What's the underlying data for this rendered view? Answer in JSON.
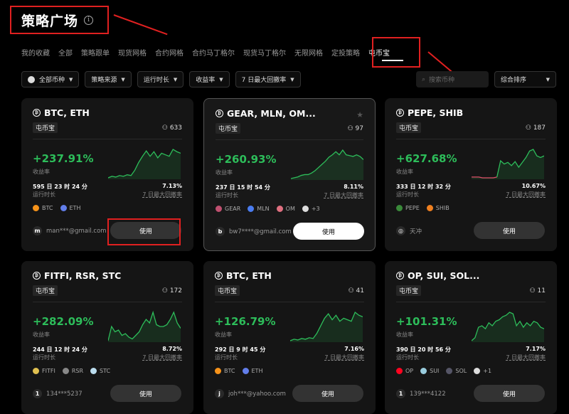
{
  "header": {
    "title": "策略广场",
    "info_icon": "info-circle-icon"
  },
  "tabs": [
    "我的收藏",
    "全部",
    "策略跟单",
    "现货网格",
    "合约网格",
    "合约马丁格尔",
    "现货马丁格尔",
    "无限网格",
    "定投策略",
    "屯币宝"
  ],
  "active_tab": "屯币宝",
  "filters": [
    "全部币种",
    "策略来源",
    "运行时长",
    "收益率",
    "7 日最大回撤率"
  ],
  "search": {
    "placeholder": "搜索币种"
  },
  "sort": {
    "label": "综合排序"
  },
  "colors": {
    "accent_green": "#2dbd5a",
    "loss_red": "#e0506a",
    "highlight_box": "#e02020"
  },
  "labels": {
    "yield": "收益率",
    "runtime": "运行时长",
    "drawdown": "7 日最大回撤率",
    "use": "使用",
    "tag": "屯币宝"
  },
  "cards": [
    {
      "title": "BTC, ETH",
      "followers": "633",
      "pct": "+237.91%",
      "runtime": "595 日 23 时 24 分",
      "drawdown": "7.13%",
      "coins": [
        {
          "n": "BTC",
          "c": "#f7931a"
        },
        {
          "n": "ETH",
          "c": "#627eea"
        }
      ],
      "user": "man***@gmail.com",
      "avatar": "m",
      "button_style": "dark",
      "spark": [
        10,
        12,
        11,
        13,
        12,
        14,
        13,
        20,
        30,
        38,
        45,
        38,
        44,
        36,
        42,
        40,
        38,
        47,
        44,
        42
      ],
      "neg_until": 0
    },
    {
      "title": "GEAR, MLN, OM...",
      "followers": "97",
      "pct": "+260.93%",
      "runtime": "237 日 15 时 54 分",
      "drawdown": "8.11%",
      "coins": [
        {
          "n": "GEAR",
          "c": "#c05070"
        },
        {
          "n": "MLN",
          "c": "#4a7cf0"
        },
        {
          "n": "OM",
          "c": "#e07080"
        },
        {
          "n": "+3",
          "c": "#ddd"
        }
      ],
      "user": "bw7****@gmail.com",
      "avatar": "b",
      "button_style": "white",
      "favorite": true,
      "spark": [
        8,
        9,
        10,
        12,
        13,
        13,
        15,
        18,
        22,
        26,
        30,
        35,
        38,
        42,
        38,
        44,
        38,
        37,
        36,
        38,
        36,
        32
      ],
      "neg_until": 0
    },
    {
      "title": "PEPE, SHIB",
      "followers": "187",
      "pct": "+627.68%",
      "runtime": "333 日 12 时 32 分",
      "drawdown": "10.67%",
      "coins": [
        {
          "n": "PEPE",
          "c": "#3a8a3a"
        },
        {
          "n": "SHIB",
          "c": "#f08020"
        }
      ],
      "user": "天冲",
      "avatar": "◎",
      "button_style": "dark",
      "spark": [
        10,
        10,
        10,
        9,
        9,
        9,
        9,
        10,
        30,
        26,
        28,
        24,
        29,
        22,
        28,
        34,
        42,
        44,
        36,
        34,
        36
      ],
      "neg_until": 7
    },
    {
      "title": "FITFI, RSR, STC",
      "followers": "172",
      "pct": "+282.09%",
      "runtime": "244 日 12 时 24 分",
      "drawdown": "8.72%",
      "coins": [
        {
          "n": "FITFI",
          "c": "#e0c050"
        },
        {
          "n": "RSR",
          "c": "#888"
        },
        {
          "n": "STC",
          "c": "#bde"
        }
      ],
      "user": "134***5237",
      "avatar": "1",
      "button_style": "dark",
      "spark": [
        12,
        28,
        22,
        24,
        18,
        20,
        16,
        14,
        18,
        22,
        30,
        36,
        32,
        44,
        30,
        28,
        28,
        30,
        36,
        44,
        32,
        26
      ],
      "neg_until": 0
    },
    {
      "title": "BTC, ETH",
      "followers": "41",
      "pct": "+126.79%",
      "runtime": "292 日 9 时 45 分",
      "drawdown": "7.16%",
      "coins": [
        {
          "n": "BTC",
          "c": "#f7931a"
        },
        {
          "n": "ETH",
          "c": "#627eea"
        }
      ],
      "user": "joh***@yahoo.com",
      "avatar": "j",
      "button_style": "dark",
      "spark": [
        10,
        12,
        11,
        13,
        12,
        14,
        13,
        20,
        30,
        40,
        46,
        38,
        44,
        36,
        40,
        38,
        36,
        48,
        44,
        42
      ],
      "neg_until": 0
    },
    {
      "title": "OP, SUI, SOL...",
      "followers": "11",
      "pct": "+101.31%",
      "runtime": "390 日 20 时 56 分",
      "drawdown": "7.17%",
      "coins": [
        {
          "n": "OP",
          "c": "#ff0420"
        },
        {
          "n": "SUI",
          "c": "#9cd"
        },
        {
          "n": "SOL",
          "c": "#556"
        },
        {
          "n": "+1",
          "c": "#ddd"
        }
      ],
      "user": "139***4122",
      "avatar": "1",
      "button_style": "dark",
      "spark": [
        10,
        14,
        28,
        30,
        26,
        34,
        30,
        36,
        38,
        42,
        44,
        48,
        46,
        30,
        36,
        28,
        34,
        30,
        36,
        34,
        28,
        26
      ],
      "neg_until": 0
    }
  ]
}
